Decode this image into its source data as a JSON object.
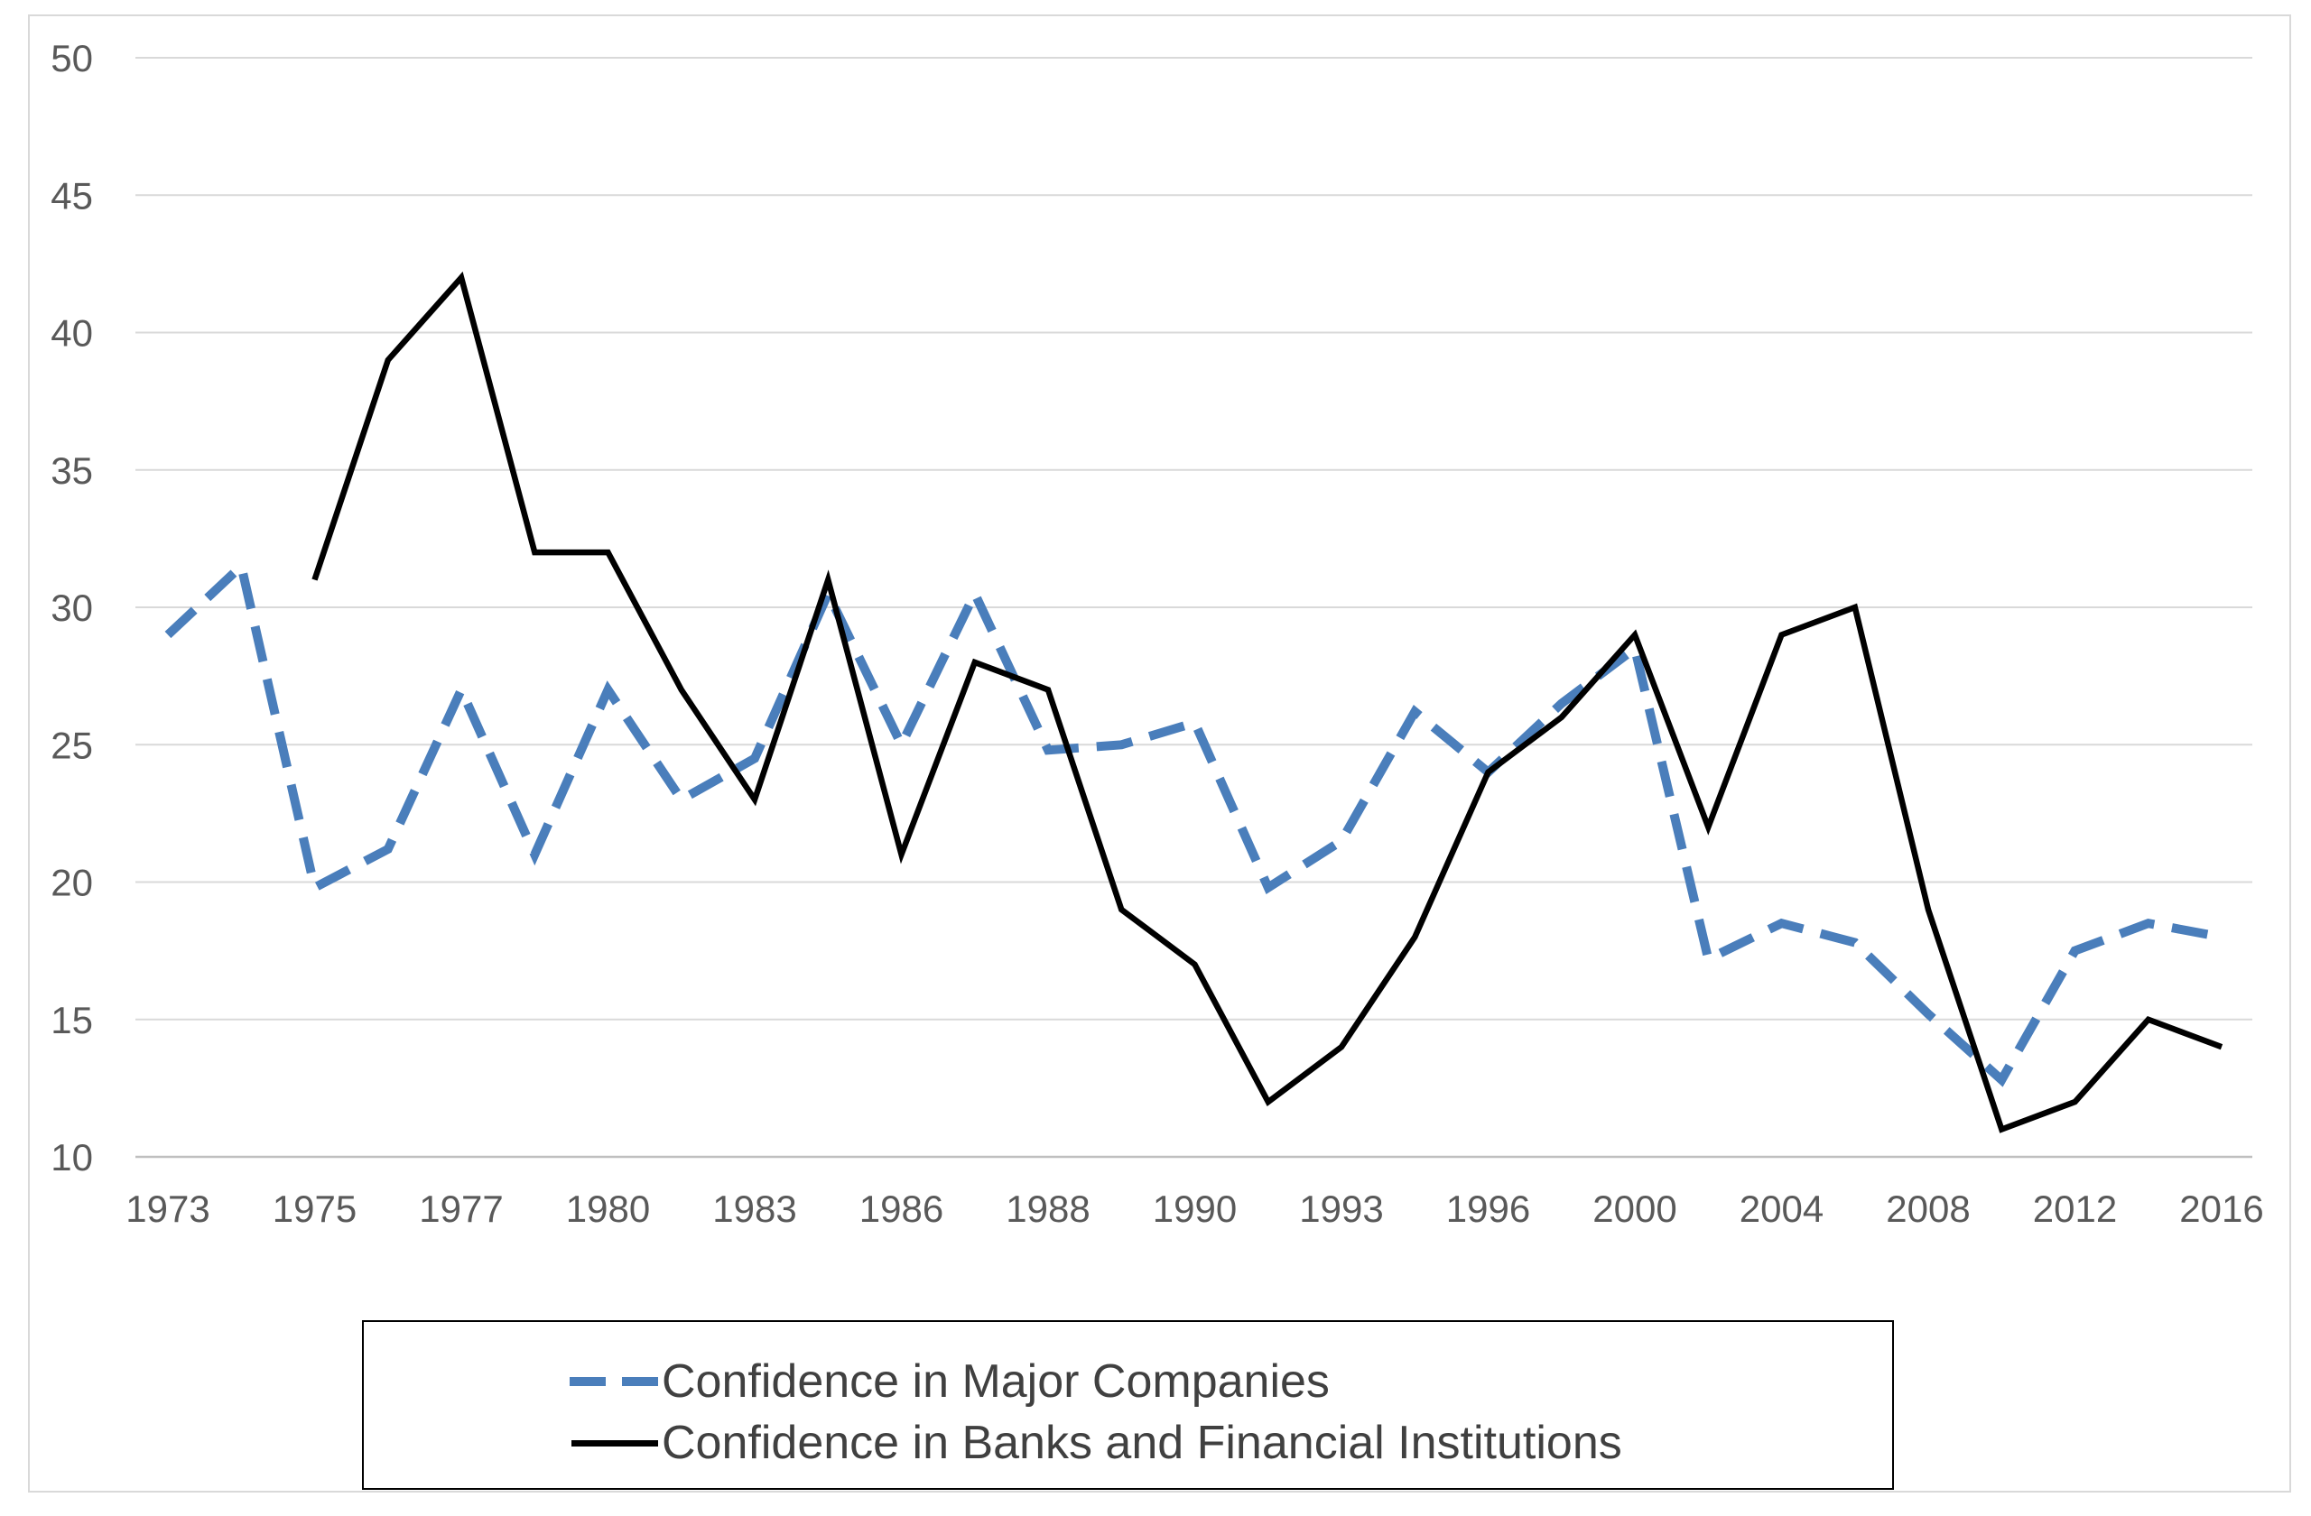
{
  "chart_data": {
    "type": "line",
    "title": "",
    "xlabel": "",
    "ylabel": "",
    "ylim": [
      10,
      50
    ],
    "yticks": [
      10,
      15,
      20,
      25,
      30,
      35,
      40,
      45,
      50
    ],
    "xtick_labels": [
      "1973",
      "1975",
      "1977",
      "1980",
      "1983",
      "1986",
      "1988",
      "1990",
      "1993",
      "1996",
      "2000",
      "2004",
      "2008",
      "2012",
      "2016"
    ],
    "x_positions": [
      "1973",
      "1974",
      "1975",
      "1976",
      "1977",
      "1978",
      "1980",
      "1982",
      "1983",
      "1984",
      "1986",
      "1987",
      "1988",
      "1989",
      "1990",
      "1991",
      "1993",
      "1994",
      "1996",
      "1998",
      "2000",
      "2002",
      "2004",
      "2006",
      "2008",
      "2010",
      "2012",
      "2014",
      "2016"
    ],
    "grid": true,
    "legend_position": "bottom",
    "series": [
      {
        "name": "Confidence in Major Companies",
        "style": "dashed",
        "color": "#4a7ebb",
        "values": [
          29,
          31.5,
          19.8,
          21.2,
          27,
          21,
          27,
          23,
          24.5,
          30.5,
          25,
          30.5,
          24.8,
          25,
          25.8,
          19.8,
          21.5,
          26.2,
          24,
          26.5,
          28.5,
          17.2,
          18.5,
          17.8,
          15.2,
          12.8,
          17.5,
          18.5,
          18
        ],
        "gaps_before_index": []
      },
      {
        "name": "Confidence in Banks and Financial Institutions",
        "style": "solid",
        "color": "#000000",
        "values": [
          null,
          null,
          31,
          39,
          42,
          32,
          32,
          27,
          23,
          31,
          21,
          28,
          27,
          19,
          17,
          12,
          14,
          18,
          24,
          26,
          29,
          22,
          29,
          30,
          19,
          11,
          12,
          15,
          14
        ]
      }
    ]
  }
}
